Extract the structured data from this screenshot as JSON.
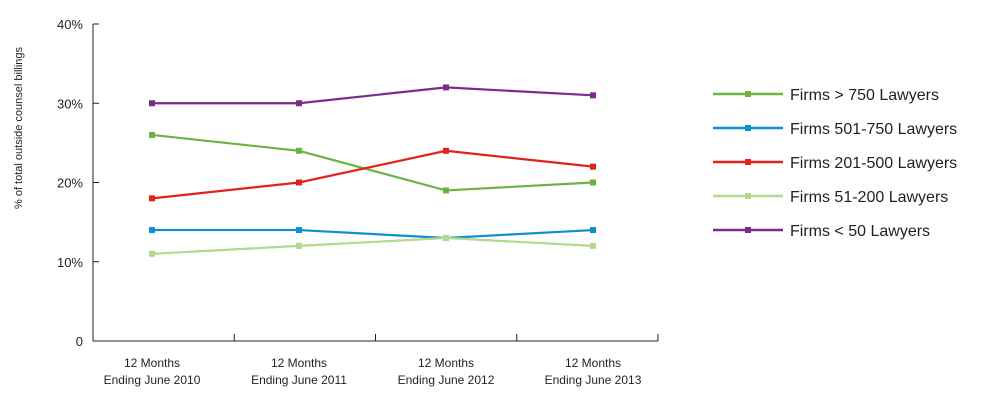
{
  "chart_data": {
    "type": "line",
    "title": "",
    "xlabel": "",
    "ylabel": "% of total outside counsel billings",
    "ylim": [
      0,
      40
    ],
    "yticks": [
      "0",
      "10%",
      "20%",
      "30%",
      "40%"
    ],
    "ytick_values": [
      0,
      10,
      20,
      30,
      40
    ],
    "categories": [
      [
        "12 Months",
        "Ending June 2010"
      ],
      [
        "12 Months",
        "Ending June 2011"
      ],
      [
        "12 Months",
        "Ending June 2012"
      ],
      [
        "12 Months",
        "Ending June 2013"
      ]
    ],
    "grid": false,
    "legend_position": "right",
    "series": [
      {
        "name": "Firms > 750 Lawyers",
        "color": "#6cb33f",
        "values": [
          26,
          24,
          19,
          20
        ]
      },
      {
        "name": "Firms 501-750 Lawyers",
        "color": "#0f8fd0",
        "values": [
          14,
          14,
          13,
          14
        ]
      },
      {
        "name": "Firms 201-500 Lawyers",
        "color": "#e2231a",
        "values": [
          18,
          20,
          24,
          22
        ]
      },
      {
        "name": "Firms 51-200 Lawyers",
        "color": "#b3d88f",
        "values": [
          11,
          12,
          13,
          12
        ]
      },
      {
        "name": "Firms < 50 Lawyers",
        "color": "#7b2c8a",
        "values": [
          30,
          30,
          32,
          31
        ]
      }
    ]
  }
}
